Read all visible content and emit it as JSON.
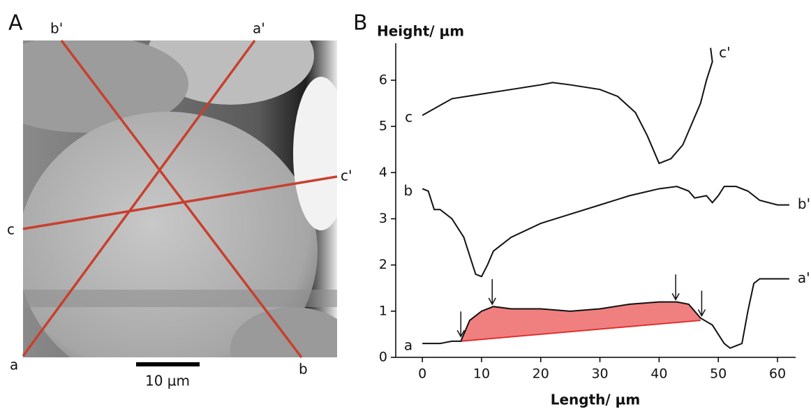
{
  "panel_a": {
    "label": "A",
    "line_labels": {
      "a": "a",
      "a_end": "a'",
      "b": "b",
      "b_end": "b'",
      "c": "c",
      "c_end": "c'"
    },
    "scale_bar": "10 µm"
  },
  "chart_data": {
    "type": "line",
    "panel_label": "B",
    "y_label": "Height/ µm",
    "x_label": "Length/ µm",
    "xlim": [
      -4.5,
      63
    ],
    "ylim": [
      0,
      6.8
    ],
    "xticks": [
      0,
      10,
      20,
      30,
      40,
      50,
      60
    ],
    "yticks": [
      0,
      1,
      2,
      3,
      4,
      5,
      6
    ],
    "series": [
      {
        "name": "c",
        "end_label": "c'",
        "color": "#111111",
        "x": [
          0,
          5,
          10,
          15,
          20,
          22,
          25,
          30,
          33,
          36,
          38,
          40,
          42,
          44,
          46,
          47,
          48,
          49,
          48.7
        ],
        "values": [
          5.24,
          5.6,
          5.7,
          5.8,
          5.9,
          5.95,
          5.9,
          5.8,
          5.65,
          5.3,
          4.8,
          4.2,
          4.3,
          4.6,
          5.2,
          5.5,
          6.0,
          6.4,
          6.7
        ]
      },
      {
        "name": "b",
        "end_label": "b'",
        "color": "#111111",
        "x": [
          0,
          1,
          2,
          3,
          5,
          7,
          8,
          9,
          10,
          11,
          12,
          15,
          20,
          25,
          30,
          35,
          40,
          43,
          45,
          46,
          48,
          49,
          50,
          51,
          53,
          55,
          57,
          60,
          62
        ],
        "values": [
          3.65,
          3.6,
          3.2,
          3.2,
          3.0,
          2.6,
          2.2,
          1.8,
          1.75,
          2.0,
          2.3,
          2.6,
          2.9,
          3.1,
          3.3,
          3.5,
          3.65,
          3.7,
          3.6,
          3.45,
          3.5,
          3.35,
          3.5,
          3.7,
          3.7,
          3.6,
          3.4,
          3.3,
          3.3
        ]
      },
      {
        "name": "a",
        "end_label": "a'",
        "color": "#111111",
        "x": [
          0,
          3,
          5,
          6.5,
          8,
          10,
          12,
          15,
          20,
          25,
          30,
          35,
          40,
          43,
          45,
          46,
          47,
          49,
          50,
          51,
          52,
          53,
          54,
          55,
          56,
          57,
          60,
          62
        ],
        "values": [
          0.3,
          0.3,
          0.35,
          0.35,
          0.8,
          1.0,
          1.1,
          1.05,
          1.05,
          1.0,
          1.05,
          1.15,
          1.2,
          1.2,
          1.15,
          1.0,
          0.85,
          0.7,
          0.5,
          0.3,
          0.2,
          0.25,
          0.3,
          1.0,
          1.6,
          1.7,
          1.7,
          1.7
        ]
      }
    ],
    "shaded_region": {
      "series": 2,
      "x": [
        6.5,
        47
      ],
      "baseline": [
        0.35,
        0.8
      ],
      "color": "#f08080",
      "line_color": "#e03030"
    },
    "arrows": {
      "x": [
        6.5,
        11.8,
        42.8,
        47.2
      ],
      "y": [
        0.45,
        1.15,
        1.25,
        0.9
      ]
    }
  }
}
